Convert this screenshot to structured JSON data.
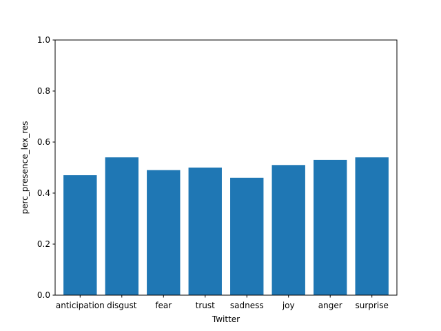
{
  "chart_data": {
    "type": "bar",
    "categories": [
      "anticipation",
      "disgust",
      "fear",
      "trust",
      "sadness",
      "joy",
      "anger",
      "surprise"
    ],
    "values": [
      0.47,
      0.54,
      0.49,
      0.5,
      0.46,
      0.51,
      0.53,
      0.54
    ],
    "xlabel": "Twitter",
    "ylabel": "perc_presence_lex_res",
    "ylim": [
      0.0,
      1.0
    ],
    "yticks": [
      "0.0",
      "0.2",
      "0.4",
      "0.6",
      "0.8",
      "1.0"
    ],
    "grid": false,
    "bar_color": "#1f77b4"
  }
}
